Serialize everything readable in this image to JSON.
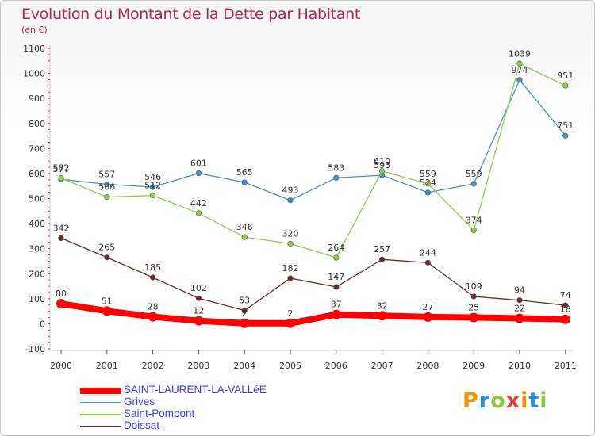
{
  "header": {
    "title": "Evolution du Montant de la Dette par Habitant",
    "unit": "(en €)"
  },
  "logo": {
    "letters": [
      "P",
      "r",
      "o",
      "x",
      "i",
      "t",
      "i"
    ],
    "letter_colors": [
      "#f29400",
      "#2b8fd6",
      "#8cc63f",
      "#e63a2e",
      "#f29400",
      "#2b8fd6",
      "#8cc63f"
    ]
  },
  "chart_data": {
    "type": "line",
    "x": [
      "2000",
      "2001",
      "2002",
      "2003",
      "2004",
      "2005",
      "2006",
      "2007",
      "2008",
      "2009",
      "2010",
      "2011"
    ],
    "ylim": [
      -100,
      1100
    ],
    "yticks": [
      "-100",
      "0",
      "100",
      "200",
      "300",
      "400",
      "500",
      "600",
      "700",
      "800",
      "900",
      "1000",
      "1100"
    ],
    "grid": false,
    "legend_position": "bottom-left",
    "series": [
      {
        "name": "SAINT-LAURENT-LA-VALLéE",
        "color": "#ff0000",
        "values": [
          80,
          51,
          28,
          12,
          2,
          2,
          37,
          32,
          27,
          25,
          22,
          18
        ],
        "labels": [
          "80",
          "51",
          "28",
          "12",
          "2",
          "2",
          "37",
          "32",
          "27",
          "25",
          "22",
          "18"
        ]
      },
      {
        "name": "Grives",
        "color": "#4a90c8",
        "values": [
          577,
          557,
          546,
          601,
          565,
          493,
          583,
          593,
          524,
          559,
          974,
          751
        ],
        "labels": [
          "577",
          "557",
          "546",
          "601",
          "565",
          "493",
          "583",
          "593",
          "524",
          "559",
          "974",
          "751"
        ]
      },
      {
        "name": "Saint-Pompont",
        "color": "#8cd04a",
        "values": [
          582,
          506,
          512,
          442,
          346,
          320,
          264,
          610,
          559,
          374,
          1039,
          951
        ],
        "labels": [
          "582",
          "506",
          "512",
          "442",
          "346",
          "320",
          "264",
          "610",
          "559",
          "374",
          "1039",
          "951"
        ]
      },
      {
        "name": "Doissat",
        "color": "#6e2a2a",
        "values": [
          342,
          265,
          185,
          102,
          53,
          182,
          147,
          257,
          244,
          109,
          94,
          74
        ],
        "labels": [
          "342",
          "265",
          "185",
          "102",
          "53",
          "182",
          "147",
          "257",
          "244",
          "109",
          "94",
          "74"
        ]
      }
    ]
  }
}
